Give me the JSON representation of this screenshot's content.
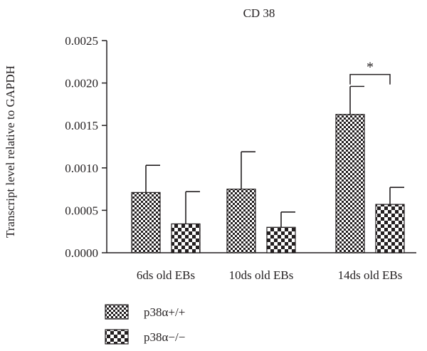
{
  "chart_data": {
    "type": "bar",
    "title": "CD 38",
    "xlabel": "",
    "ylabel": "Transcript level relative to GAPDH",
    "categories": [
      "6ds old EBs",
      "10ds old EBs",
      "14ds old EBs"
    ],
    "ylim": [
      0,
      0.0025
    ],
    "yticks": [
      "0.0000",
      "0.0005",
      "0.0010",
      "0.0015",
      "0.0020",
      "0.0025"
    ],
    "series": [
      {
        "name": "p38α+/+",
        "pattern": "fine-checker",
        "values": [
          0.00071,
          0.00075,
          0.00163
        ],
        "errors": [
          0.00032,
          0.00044,
          0.00033
        ]
      },
      {
        "name": "p38α−/−",
        "pattern": "coarse-checker",
        "values": [
          0.00034,
          0.0003,
          0.00057
        ],
        "errors": [
          0.00038,
          0.00018,
          0.0002
        ]
      }
    ],
    "annotations": [
      {
        "text": "*",
        "category": "14ds old EBs",
        "y": 0.0021
      }
    ],
    "legend_position": "bottom-left",
    "grid": false,
    "colors": {
      "ink": "#231f20",
      "background": "#ffffff"
    }
  }
}
